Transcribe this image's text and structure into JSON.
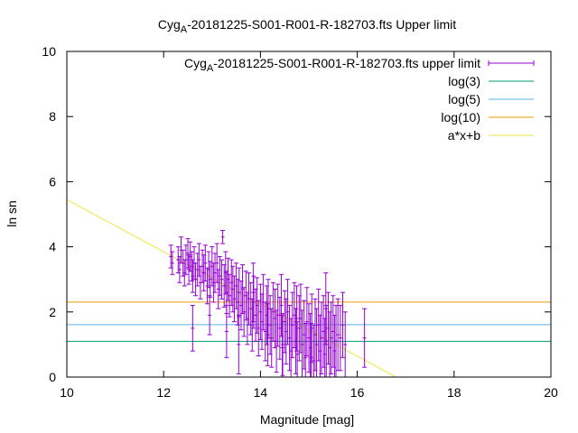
{
  "chart_data": {
    "type": "scatter",
    "title_main": "Cyg",
    "title_sub": "A",
    "title_rest": "-20181225-S001-R001-R-182703.fts Upper limit",
    "xlabel": "Magnitude [mag]",
    "ylabel": "ln sn",
    "xlim": [
      10,
      20
    ],
    "ylim": [
      0,
      10
    ],
    "xticks": [
      10,
      12,
      14,
      16,
      18,
      20
    ],
    "yticks": [
      0,
      2,
      4,
      6,
      8,
      10
    ],
    "grid": false,
    "legend_position": "top-right",
    "legend": [
      {
        "main": "Cyg",
        "sub": "A",
        "rest": "-20181225-S001-R001-R-182703.fts upper limit",
        "kind": "errorbar",
        "color": "#9400d3"
      },
      {
        "main": "log(3)",
        "sub": "",
        "rest": "",
        "kind": "line",
        "color": "#009e73"
      },
      {
        "main": "log(5)",
        "sub": "",
        "rest": "",
        "kind": "line",
        "color": "#56b4e9"
      },
      {
        "main": "log(10)",
        "sub": "",
        "rest": "",
        "kind": "line",
        "color": "#e69f00"
      },
      {
        "main": "a*x+b",
        "sub": "",
        "rest": "",
        "kind": "line",
        "color": "#f0e442"
      }
    ],
    "horizontal_lines": [
      {
        "value": 1.0986,
        "color": "#009e73"
      },
      {
        "value": 1.6094,
        "color": "#56b4e9"
      },
      {
        "value": 2.3026,
        "color": "#e69f00"
      }
    ],
    "fit_line": {
      "color": "#f0e442",
      "x": [
        10.0,
        16.8
      ],
      "y": [
        5.45,
        0.0
      ]
    },
    "series": [
      {
        "color": "#9400d3",
        "x": [
          12.15,
          12.18,
          12.3,
          12.33,
          12.36,
          12.4,
          12.43,
          12.46,
          12.5,
          12.52,
          12.55,
          12.58,
          12.6,
          12.63,
          12.66,
          12.7,
          12.73,
          12.76,
          12.8,
          12.83,
          12.86,
          12.9,
          12.93,
          12.96,
          13.0,
          13.03,
          13.06,
          13.1,
          13.13,
          13.16,
          13.2,
          13.22,
          13.25,
          13.28,
          13.3,
          13.33,
          13.36,
          13.4,
          13.43,
          13.46,
          13.5,
          13.53,
          13.56,
          13.6,
          13.63,
          13.66,
          13.7,
          13.73,
          13.76,
          13.8,
          13.83,
          13.86,
          13.9,
          13.93,
          13.96,
          14.0,
          14.03,
          14.06,
          14.1,
          14.13,
          14.16,
          14.2,
          14.23,
          14.26,
          14.3,
          14.33,
          14.36,
          14.4,
          14.43,
          14.46,
          14.5,
          14.53,
          14.56,
          14.6,
          14.63,
          14.66,
          14.7,
          14.73,
          14.76,
          14.8,
          14.83,
          14.86,
          14.9,
          14.93,
          14.96,
          15.0,
          15.03,
          15.06,
          15.1,
          15.13,
          15.16,
          15.2,
          15.23,
          15.26,
          15.3,
          15.33,
          15.36,
          15.4,
          15.43,
          15.46,
          15.5,
          15.53,
          15.56,
          15.6,
          15.65,
          15.7,
          15.75,
          16.15,
          12.6,
          12.95,
          13.3,
          13.55,
          13.85,
          14.15,
          14.45,
          14.75,
          15.05,
          15.35
        ],
        "y": [
          3.7,
          3.5,
          3.6,
          3.3,
          3.9,
          3.5,
          3.2,
          3.6,
          3.8,
          3.3,
          3.7,
          3.4,
          3.1,
          3.5,
          3.0,
          3.3,
          3.6,
          2.9,
          3.4,
          3.2,
          3.5,
          2.8,
          3.3,
          3.0,
          3.4,
          2.9,
          3.2,
          3.5,
          2.7,
          3.1,
          3.0,
          4.3,
          2.8,
          3.2,
          2.6,
          3.0,
          2.5,
          2.9,
          2.7,
          2.4,
          2.8,
          2.3,
          2.6,
          2.2,
          2.7,
          2.0,
          2.5,
          1.8,
          2.4,
          2.1,
          1.6,
          2.3,
          1.9,
          2.2,
          1.5,
          2.0,
          1.7,
          2.3,
          1.4,
          1.9,
          2.1,
          1.6,
          1.2,
          2.0,
          1.8,
          1.1,
          1.9,
          1.5,
          2.2,
          1.0,
          1.7,
          1.4,
          2.0,
          1.2,
          0.8,
          1.6,
          1.9,
          1.1,
          0.7,
          1.5,
          1.8,
          1.0,
          1.3,
          0.6,
          1.7,
          1.2,
          0.9,
          1.5,
          0.5,
          1.3,
          1.0,
          1.6,
          0.8,
          1.2,
          1.4,
          0.7,
          1.1,
          1.5,
          0.9,
          1.2,
          1.4,
          0.8,
          1.1,
          1.3,
          1.2,
          1.6,
          1.0,
          1.2,
          1.5,
          1.9,
          1.4,
          1.0,
          2.6,
          1.3,
          0.9,
          1.8,
          0.6,
          2.1
        ],
        "yerr": [
          0.35,
          0.35,
          0.4,
          0.4,
          0.4,
          0.4,
          0.4,
          0.45,
          0.45,
          0.45,
          0.45,
          0.45,
          0.5,
          0.5,
          0.5,
          0.5,
          0.5,
          0.5,
          0.5,
          0.55,
          0.55,
          0.55,
          0.55,
          0.55,
          0.6,
          0.6,
          0.6,
          0.6,
          0.6,
          0.6,
          0.6,
          0.2,
          0.65,
          0.65,
          0.65,
          0.65,
          0.65,
          0.7,
          0.7,
          0.7,
          0.7,
          0.7,
          0.75,
          0.75,
          0.75,
          0.75,
          0.75,
          0.8,
          0.8,
          0.8,
          0.8,
          0.8,
          0.8,
          0.85,
          0.85,
          0.85,
          0.85,
          0.85,
          0.9,
          0.9,
          0.9,
          0.9,
          0.9,
          0.9,
          0.9,
          0.95,
          0.95,
          0.95,
          0.95,
          0.95,
          0.95,
          1.0,
          1.0,
          1.0,
          1.0,
          1.0,
          1.0,
          1.0,
          1.0,
          1.0,
          1.05,
          1.05,
          1.05,
          1.05,
          1.05,
          1.05,
          1.05,
          1.05,
          1.1,
          1.1,
          1.1,
          1.1,
          1.1,
          1.1,
          1.1,
          1.1,
          1.1,
          1.1,
          1.1,
          1.1,
          1.1,
          1.1,
          1.1,
          1.1,
          1.0,
          1.0,
          1.0,
          0.9,
          0.7,
          0.6,
          0.8,
          0.9,
          0.9,
          0.95,
          1.0,
          1.0,
          1.05,
          1.1
        ]
      }
    ]
  }
}
